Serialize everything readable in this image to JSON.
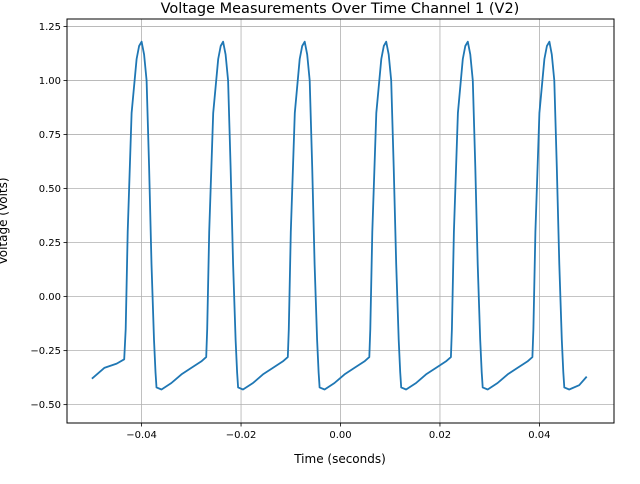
{
  "chart_data": {
    "type": "line",
    "title": "Voltage Measurements Over Time Channel 1 (V2)",
    "xlabel": "Time (seconds)",
    "ylabel": "Voltage (Volts)",
    "xlim": [
      -0.055,
      0.055
    ],
    "ylim": [
      -0.585,
      1.285
    ],
    "xticks": [
      -0.04,
      -0.02,
      0.0,
      0.02,
      0.04
    ],
    "xtick_labels": [
      "−0.04",
      "−0.02",
      "0.00",
      "0.02",
      "0.04"
    ],
    "yticks": [
      -0.5,
      -0.25,
      0.0,
      0.25,
      0.5,
      0.75,
      1.0,
      1.25
    ],
    "ytick_labels": [
      "−0.50",
      "−0.25",
      "0.00",
      "0.25",
      "0.50",
      "0.75",
      "1.00",
      "1.25"
    ],
    "grid": true,
    "legend": "none",
    "series": [
      {
        "color": "#1f77b4",
        "x": [
          -0.05,
          -0.0475,
          -0.045,
          -0.0435,
          -0.0432,
          -0.0428,
          -0.042,
          -0.041,
          -0.0405,
          -0.04,
          -0.0395,
          -0.039,
          -0.0385,
          -0.038,
          -0.0375,
          -0.0372,
          -0.037,
          -0.036,
          -0.034,
          -0.032,
          -0.03,
          -0.028,
          -0.027,
          -0.0268,
          -0.0264,
          -0.0256,
          -0.0246,
          -0.0241,
          -0.0236,
          -0.0231,
          -0.0226,
          -0.0221,
          -0.0216,
          -0.0211,
          -0.0208,
          -0.0206,
          -0.0196,
          -0.0176,
          -0.0156,
          -0.0136,
          -0.0116,
          -0.0106,
          -0.0104,
          -0.01,
          -0.0092,
          -0.0082,
          -0.0077,
          -0.0072,
          -0.0067,
          -0.0062,
          -0.0057,
          -0.0052,
          -0.0047,
          -0.0044,
          -0.0042,
          -0.0032,
          -0.0012,
          0.0008,
          0.0028,
          0.0048,
          0.0058,
          0.006,
          0.0064,
          0.0072,
          0.0082,
          0.0087,
          0.0092,
          0.0097,
          0.0102,
          0.0107,
          0.0112,
          0.0117,
          0.012,
          0.0122,
          0.0132,
          0.0152,
          0.0172,
          0.0192,
          0.0212,
          0.0222,
          0.0224,
          0.0228,
          0.0236,
          0.0246,
          0.0251,
          0.0256,
          0.0261,
          0.0266,
          0.0271,
          0.0276,
          0.0281,
          0.0284,
          0.0286,
          0.0296,
          0.0316,
          0.0336,
          0.0356,
          0.0376,
          0.0386,
          0.0388,
          0.0392,
          0.04,
          0.041,
          0.0415,
          0.042,
          0.0425,
          0.043,
          0.0435,
          0.044,
          0.0445,
          0.0448,
          0.045,
          0.046,
          0.048,
          0.0495
        ],
        "y": [
          -0.38,
          -0.33,
          -0.31,
          -0.29,
          -0.15,
          0.3,
          0.85,
          1.1,
          1.16,
          1.18,
          1.12,
          1.0,
          0.6,
          0.15,
          -0.2,
          -0.35,
          -0.42,
          -0.43,
          -0.4,
          -0.36,
          -0.33,
          -0.3,
          -0.28,
          -0.15,
          0.3,
          0.85,
          1.1,
          1.16,
          1.18,
          1.12,
          1.0,
          0.6,
          0.15,
          -0.2,
          -0.35,
          -0.42,
          -0.43,
          -0.4,
          -0.36,
          -0.33,
          -0.3,
          -0.28,
          -0.15,
          0.3,
          0.85,
          1.1,
          1.16,
          1.18,
          1.12,
          1.0,
          0.6,
          0.15,
          -0.2,
          -0.35,
          -0.42,
          -0.43,
          -0.4,
          -0.36,
          -0.33,
          -0.3,
          -0.28,
          -0.15,
          0.3,
          0.85,
          1.1,
          1.16,
          1.18,
          1.12,
          1.0,
          0.6,
          0.15,
          -0.2,
          -0.35,
          -0.42,
          -0.43,
          -0.4,
          -0.36,
          -0.33,
          -0.3,
          -0.28,
          -0.15,
          0.3,
          0.85,
          1.1,
          1.16,
          1.18,
          1.12,
          1.0,
          0.6,
          0.15,
          -0.2,
          -0.35,
          -0.42,
          -0.43,
          -0.4,
          -0.36,
          -0.33,
          -0.3,
          -0.28,
          -0.15,
          0.3,
          0.85,
          1.1,
          1.16,
          1.18,
          1.12,
          1.0,
          0.6,
          0.15,
          -0.2,
          -0.35,
          -0.42,
          -0.43,
          -0.41,
          -0.37
        ]
      }
    ]
  }
}
